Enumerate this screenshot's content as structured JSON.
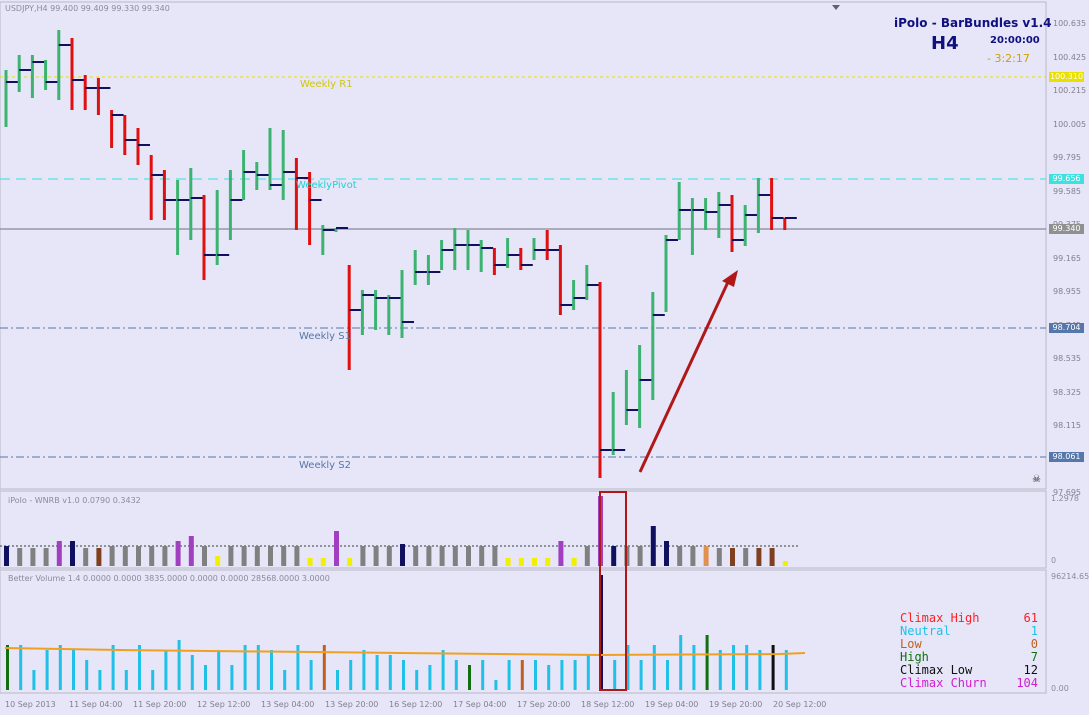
{
  "symbol_header": "USDJPY,H4  99.400 99.409 99.330 99.340",
  "indicator": {
    "name": "iPolo - BarBundles v1.4",
    "timeframe": "H4",
    "time": "20:00:00",
    "countdown": "- 3:2:17"
  },
  "levels": [
    {
      "name": "Weekly R1",
      "price": "100.310",
      "color": "#e8e000"
    },
    {
      "name": "WeeklyPivot",
      "price": "99.656",
      "color": "#30e0e0"
    },
    {
      "name": "Weekly S1",
      "price": "98.704",
      "color": "#5577aa"
    },
    {
      "name": "Weekly S2",
      "price": "98.061",
      "color": "#5577aa"
    }
  ],
  "current_price": "99.340",
  "price_axis": [
    "100.635",
    "100.425",
    "100.215",
    "100.005",
    "99.795",
    "99.585",
    "99.375",
    "99.165",
    "98.955",
    "98.745",
    "98.535",
    "98.325",
    "98.115",
    "97.905",
    "97.695"
  ],
  "wnrb": {
    "title": "iPolo - WNRB v1.0 0.0790 0.3432",
    "max": "1.2978",
    "zero": "0"
  },
  "volume": {
    "title": "Better Volume 1.4 0.0000 0.0000 3835.0000 0.0000 0.0000 28568.0000 3.0000",
    "max": "96214.65",
    "min": "0.00"
  },
  "time_axis": [
    "10 Sep 2013",
    "11 Sep 04:00",
    "11 Sep 20:00",
    "12 Sep 12:00",
    "13 Sep 04:00",
    "13 Sep 20:00",
    "16 Sep 12:00",
    "17 Sep 04:00",
    "17 Sep 20:00",
    "18 Sep 12:00",
    "19 Sep 04:00",
    "19 Sep 20:00",
    "20 Sep 12:00"
  ],
  "legend": [
    {
      "label": "Climax High",
      "value": "61",
      "color": "#ff2020"
    },
    {
      "label": "Neutral",
      "value": "1",
      "color": "#20c0e8"
    },
    {
      "label": "Low",
      "value": "0",
      "color": "#c06020"
    },
    {
      "label": "High",
      "value": "7",
      "color": "#107010"
    },
    {
      "label": "Climax Low",
      "value": "12",
      "color": "#101010"
    },
    {
      "label": "Climax Churn",
      "value": "104",
      "color": "#d020d0"
    }
  ]
}
